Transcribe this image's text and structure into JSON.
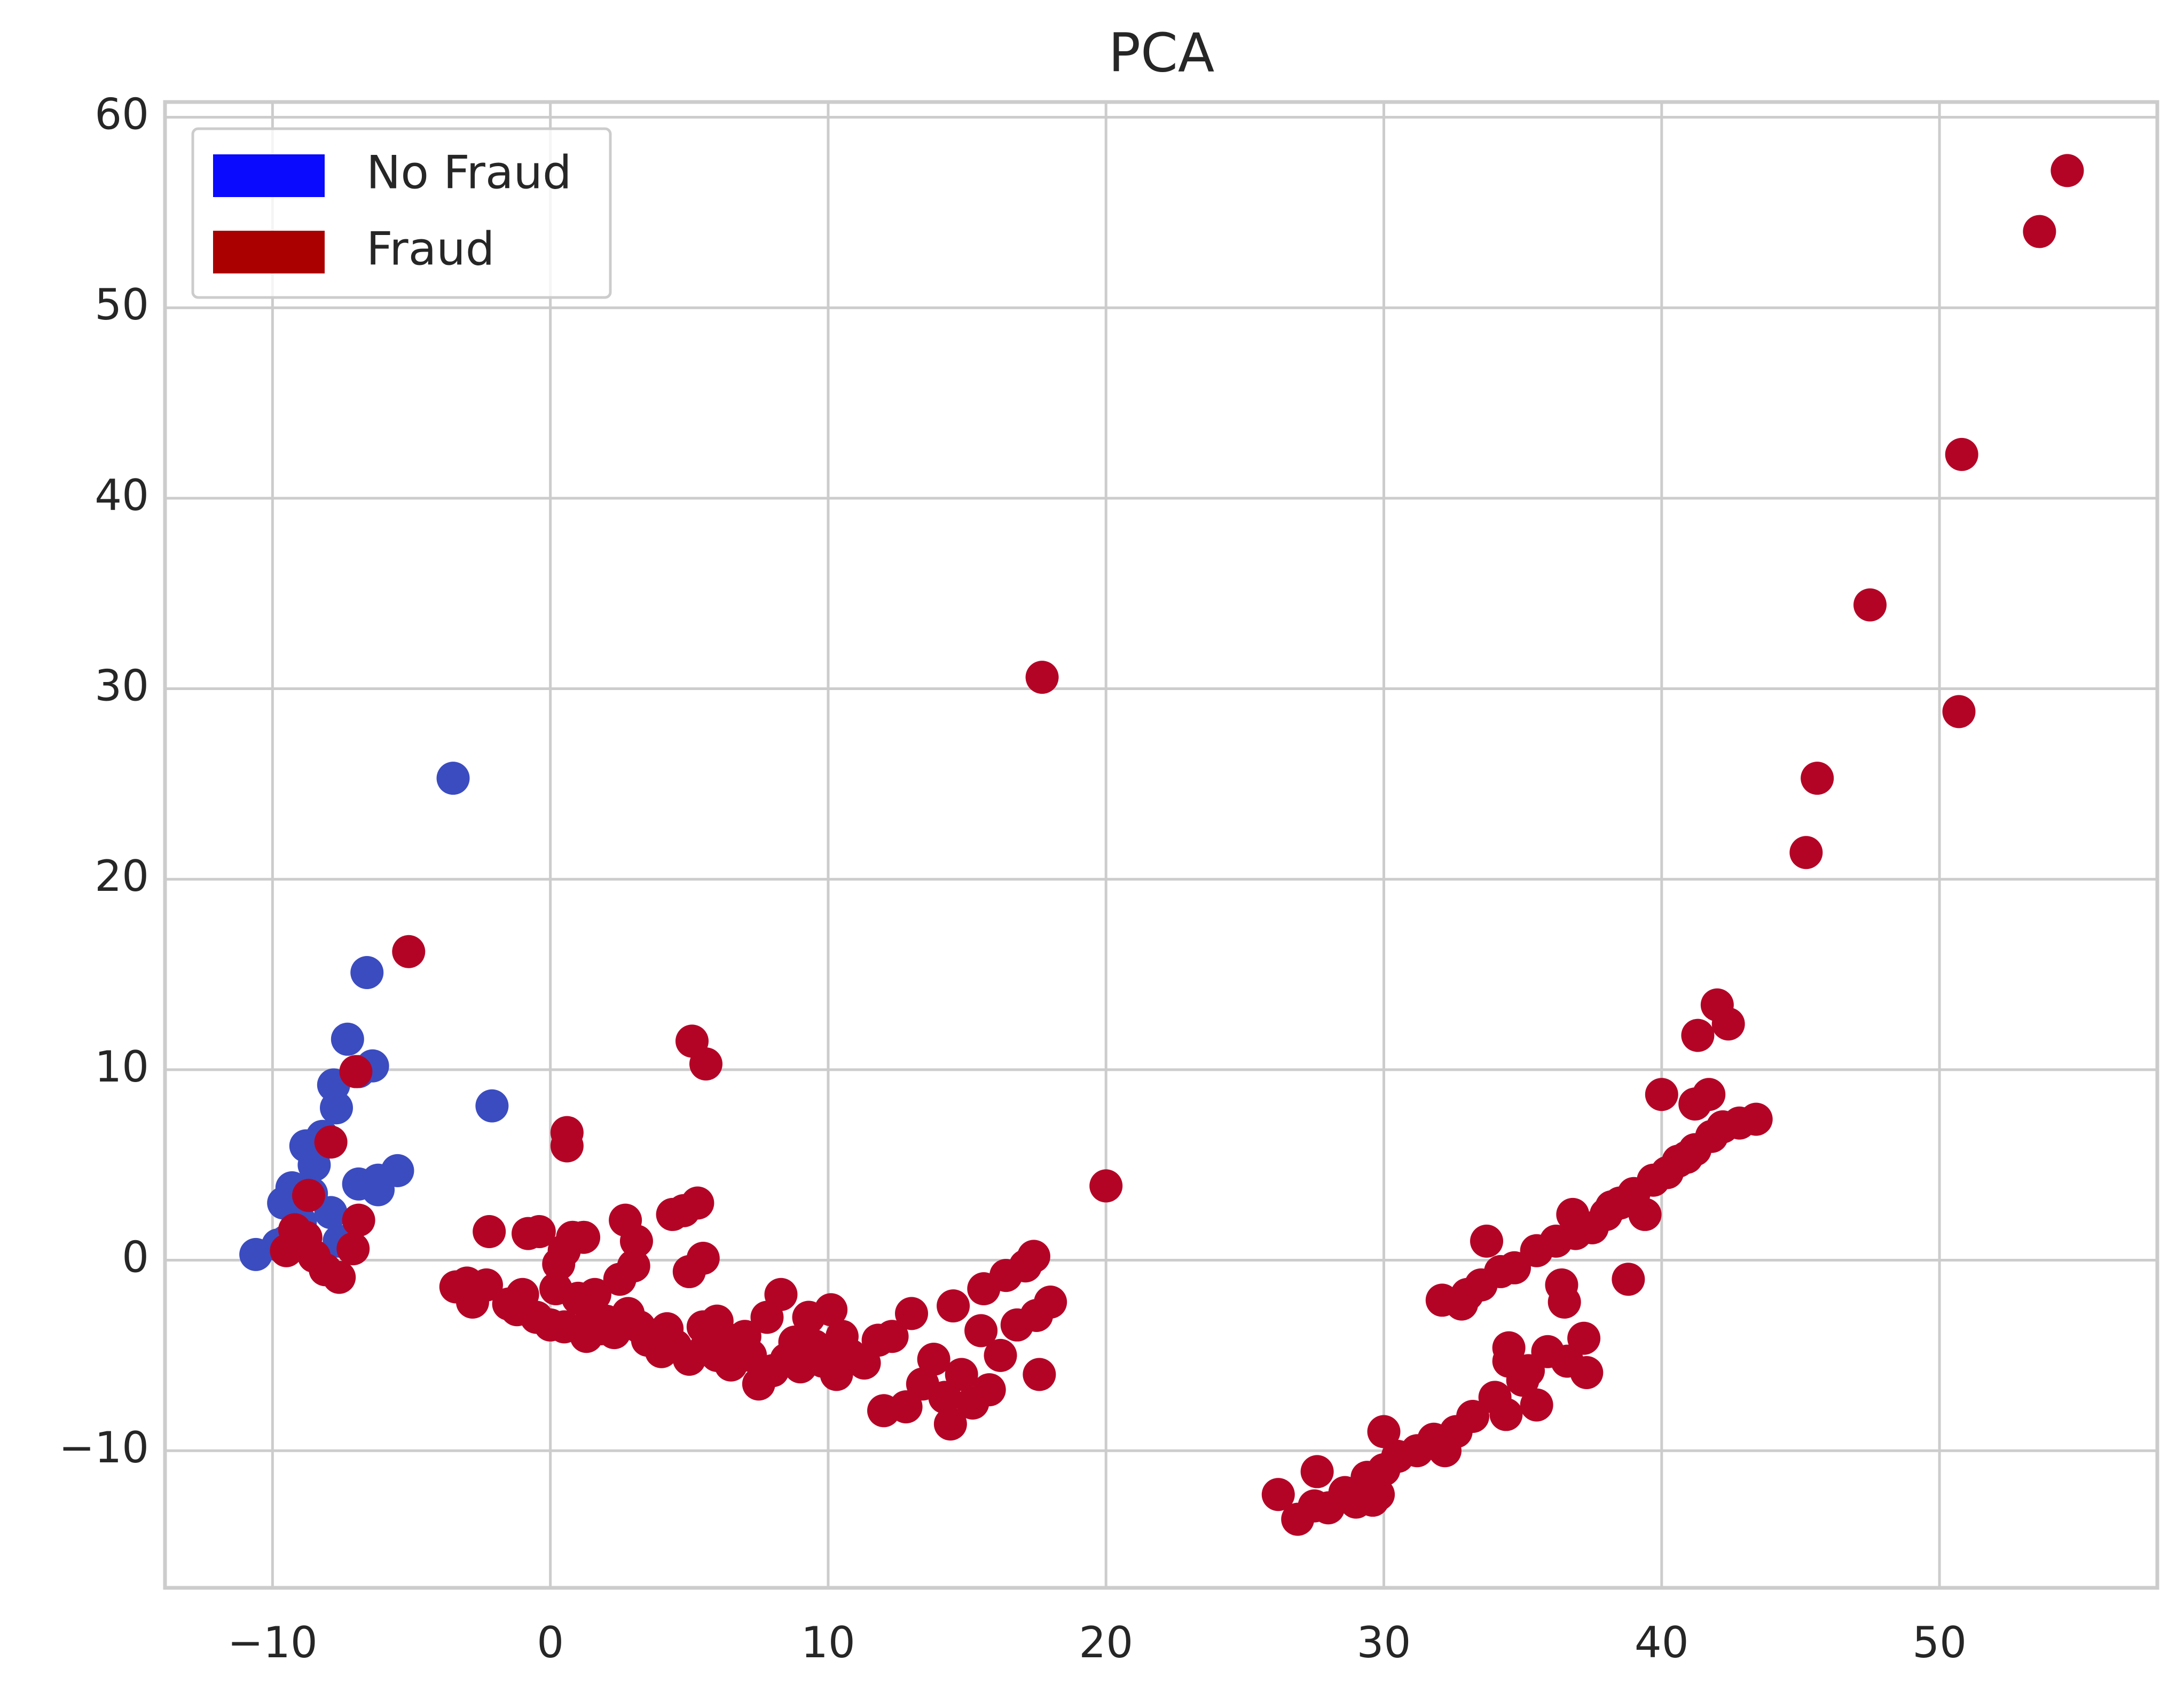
{
  "chart_data": {
    "type": "scatter",
    "title": "PCA",
    "xlim": [
      -13.87,
      57.84
    ],
    "ylim": [
      -17.2,
      60.8
    ],
    "xticks": [
      {
        "value": -10,
        "label": "−10"
      },
      0,
      10,
      20,
      30,
      40,
      50
    ],
    "yticks": [
      {
        "value": -10,
        "label": "−10"
      },
      0,
      10,
      20,
      30,
      40,
      50,
      60
    ],
    "grid": true,
    "legend": "upper left",
    "series": [
      {
        "name": "No Fraud",
        "color": "#3b4cc0",
        "patch_color": "#0a0aff",
        "x": [
          -10.6,
          -9.8,
          -9.5,
          -9.6,
          -9.3,
          -8.8,
          -8.5,
          -8.2,
          -7.8,
          -7.7,
          -7.3,
          -6.9,
          -6.6,
          -6.4,
          -6.9,
          -6.2,
          -6.2,
          -5.5,
          -3.5,
          -2.1,
          -7.9,
          -7.6,
          -8.6,
          -9.0
        ],
        "y": [
          0.3,
          0.8,
          1.0,
          3.0,
          3.8,
          6.0,
          5.0,
          6.5,
          9.2,
          8.0,
          11.6,
          9.9,
          15.1,
          10.2,
          4.0,
          3.7,
          4.2,
          4.7,
          25.3,
          8.1,
          2.5,
          1.0,
          3.5,
          2.0
        ]
      },
      {
        "name": "Fraud",
        "color": "#b40426",
        "patch_color": "#aa0000",
        "x": [
          -9.5,
          -9.2,
          -8.8,
          -8.5,
          -8.1,
          -7.6,
          -7.1,
          -6.9,
          -8.7,
          -7.9,
          -7.0,
          -5.1,
          -2.2,
          -3.4,
          -3.0,
          -2.8,
          -2.3,
          -1.5,
          -1.2,
          -0.8,
          -0.4,
          -0.5,
          0.0,
          0.3,
          0.5,
          0.6,
          0.6,
          0.8,
          1.2,
          1.3,
          1.0,
          1.8,
          2.3,
          2.7,
          2.5,
          3.0,
          3.1,
          3.2,
          3.9,
          4.4,
          4.8,
          5.0,
          5.5,
          5.3,
          5.1,
          5.6,
          4.5,
          5.0,
          5.6,
          6.0,
          6.5,
          7.0,
          7.5,
          8.0,
          8.3,
          8.8,
          9.3,
          9.8,
          10.1,
          10.3,
          10.8,
          11.3,
          11.8,
          12.3,
          12.0,
          12.8,
          13.0,
          13.4,
          13.8,
          14.2,
          14.5,
          14.4,
          14.8,
          15.2,
          15.5,
          15.6,
          15.8,
          16.2,
          16.4,
          16.8,
          17.1,
          17.5,
          17.4,
          17.6,
          18.0,
          17.7,
          20.0,
          26.2,
          26.9,
          27.5,
          27.6,
          28.0,
          28.6,
          29.0,
          29.4,
          29.6,
          29.8,
          30.0,
          30.0,
          30.5,
          31.2,
          31.8,
          32.1,
          32.2,
          32.6,
          32.8,
          33.2,
          33.5,
          33.7,
          34.0,
          34.4,
          34.5,
          34.5,
          34.7,
          35.0,
          35.2,
          35.5,
          35.5,
          35.9,
          36.2,
          36.4,
          36.5,
          36.8,
          36.6,
          37.2,
          37.3,
          37.5,
          38.0,
          38.5,
          38.8,
          39.0,
          39.4,
          39.7,
          40.0,
          40.2,
          40.6,
          41.2,
          41.2,
          41.3,
          41.7,
          41.8,
          42.0,
          42.2,
          42.4,
          42.8,
          43.4,
          45.2,
          45.6,
          47.5,
          50.7,
          50.8,
          53.6,
          54.6,
          0.5,
          1.5,
          2.0,
          3.5,
          4.0,
          6.5,
          7.2,
          8.5,
          9.0,
          9.5,
          6.0,
          7.8,
          10.5,
          5.5,
          4.2,
          2.8,
          1.6,
          -1.0,
          0.2,
          33.0,
          34.2,
          36.9,
          38.2,
          40.9
        ],
        "y": [
          0.5,
          1.6,
          1.2,
          0.2,
          -0.5,
          -0.9,
          0.6,
          2.1,
          3.4,
          6.2,
          9.9,
          16.2,
          1.5,
          -1.4,
          -1.2,
          -2.2,
          -1.3,
          -2.3,
          -2.6,
          1.4,
          1.5,
          -3.0,
          -3.4,
          -0.2,
          0.5,
          6.7,
          6.0,
          1.2,
          1.2,
          -4.0,
          -2.0,
          -3.6,
          -3.8,
          2.1,
          -1.0,
          -0.3,
          1.0,
          -3.5,
          -3.9,
          2.4,
          2.6,
          -0.6,
          0.1,
          3.0,
          11.5,
          10.3,
          -4.5,
          -5.2,
          -4.6,
          -5.0,
          -5.5,
          -4.0,
          -6.5,
          -5.8,
          -1.8,
          -4.3,
          -3.0,
          -5.3,
          -2.6,
          -6.0,
          -5.0,
          -5.4,
          -4.2,
          -4.0,
          -7.9,
          -7.7,
          -2.8,
          -6.5,
          -5.2,
          -7.2,
          -2.4,
          -8.6,
          -6.0,
          -7.5,
          -3.7,
          -1.5,
          -6.8,
          -5.0,
          -0.8,
          -3.4,
          -0.3,
          -2.9,
          0.2,
          -6.0,
          -2.2,
          30.6,
          3.9,
          -12.3,
          -13.6,
          -12.9,
          -11.1,
          -13.0,
          -12.2,
          -12.7,
          -11.4,
          -12.6,
          -12.3,
          -11.0,
          -9.0,
          -10.3,
          -10.0,
          -9.4,
          -2.1,
          -10.0,
          -9.0,
          -2.3,
          -8.2,
          -1.3,
          1.0,
          -7.2,
          -8.1,
          -5.3,
          -4.6,
          -0.4,
          -6.3,
          -5.8,
          -7.6,
          0.5,
          -4.8,
          1.0,
          -1.3,
          -2.2,
          2.4,
          -5.3,
          -4.1,
          -5.9,
          1.7,
          2.4,
          3.0,
          -1.0,
          3.5,
          2.4,
          4.2,
          8.7,
          4.6,
          5.2,
          5.8,
          8.2,
          11.8,
          8.7,
          6.5,
          13.4,
          7.0,
          12.4,
          7.2,
          7.4,
          21.4,
          25.3,
          34.4,
          28.8,
          42.3,
          54.0,
          57.2,
          -3.5,
          -3.0,
          -3.2,
          -4.2,
          -4.8,
          -4.2,
          -5.0,
          -5.2,
          -5.6,
          -4.5,
          -3.2,
          -3.0,
          -4.0,
          -3.5,
          -3.6,
          -2.8,
          -1.8,
          -1.8,
          -1.5,
          -1.8,
          -0.6,
          1.4,
          2.8,
          5.4
        ]
      }
    ]
  }
}
